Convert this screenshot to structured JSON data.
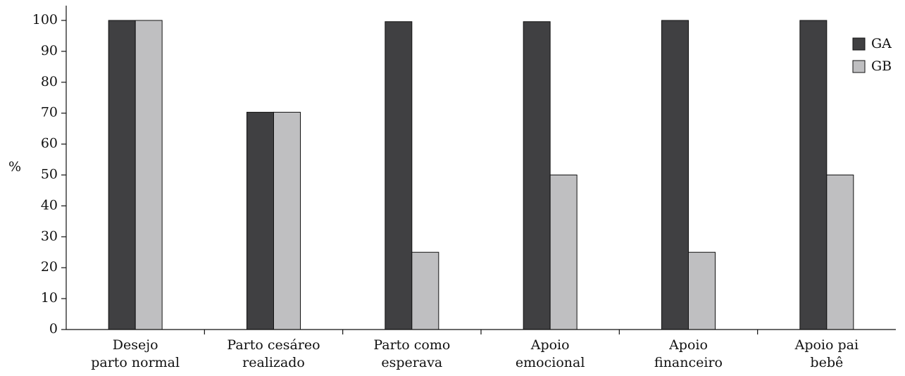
{
  "chart_data": {
    "type": "bar",
    "title": "",
    "ylabel": "%",
    "xlabel": "",
    "ylim": [
      0,
      100
    ],
    "yticks": [
      0,
      10,
      20,
      30,
      40,
      50,
      60,
      70,
      80,
      90,
      100
    ],
    "grid": false,
    "legend_position": "top-right",
    "categories": [
      [
        "Desejo",
        "parto normal"
      ],
      [
        "Parto cesáreo",
        "realizado"
      ],
      [
        "Parto como",
        "esperava"
      ],
      [
        "Apoio",
        "emocional"
      ],
      [
        "Apoio",
        "financeiro"
      ],
      [
        "Apoio pai",
        "bebê"
      ]
    ],
    "series": [
      {
        "name": "GA",
        "color": "#404042",
        "values": [
          100,
          70.3,
          99.6,
          99.6,
          100,
          100
        ]
      },
      {
        "name": "GB",
        "color": "#bfbfc1",
        "values": [
          100,
          70.3,
          25,
          50,
          25,
          50
        ]
      }
    ]
  }
}
